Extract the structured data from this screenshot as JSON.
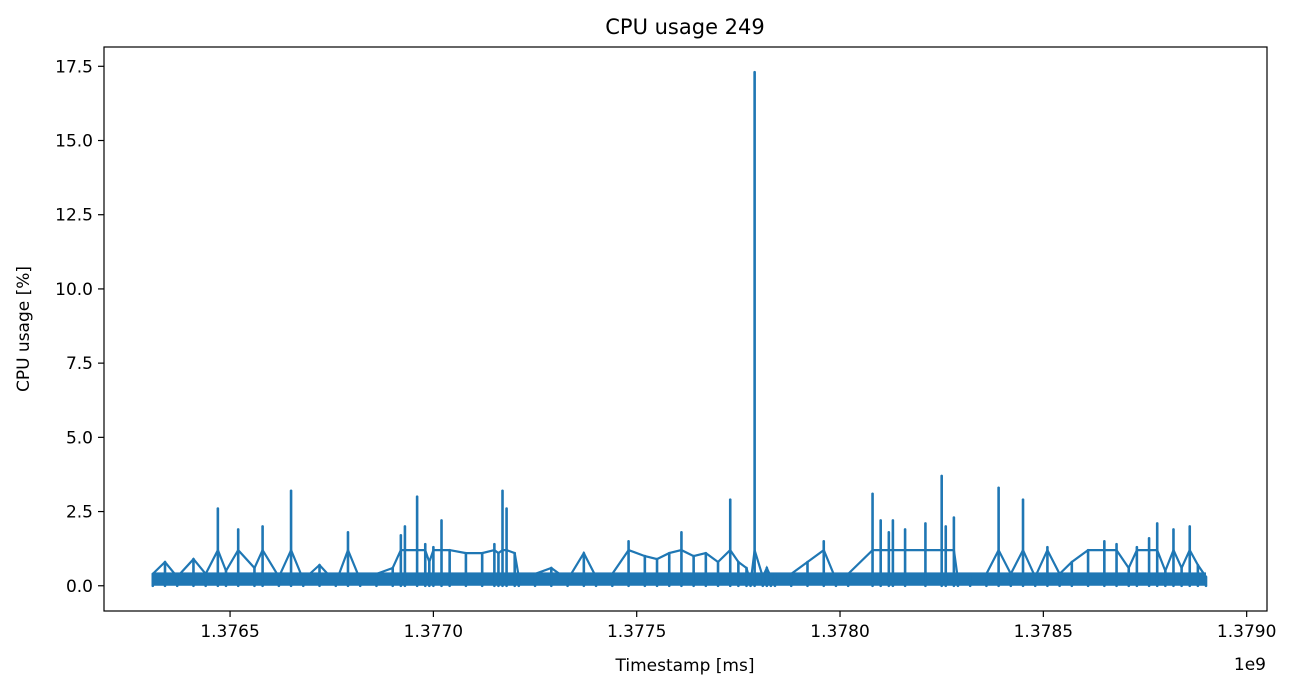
{
  "chart_data": {
    "type": "line",
    "title": "CPU usage 249",
    "xlabel": "Timestamp [ms]",
    "ylabel": "CPU usage [%]",
    "x_offset_label": "1e9",
    "xlim": [
      1.37619,
      1.37905
    ],
    "ylim": [
      -0.85,
      18.15
    ],
    "xticks": [
      1.3765,
      1.377,
      1.3775,
      1.378,
      1.3785,
      1.379
    ],
    "xtick_labels": [
      "1.3765",
      "1.3770",
      "1.3775",
      "1.3780",
      "1.3785",
      "1.3790"
    ],
    "yticks": [
      0.0,
      2.5,
      5.0,
      7.5,
      10.0,
      12.5,
      15.0,
      17.5
    ],
    "ytick_labels": [
      "0.0",
      "2.5",
      "5.0",
      "7.5",
      "10.0",
      "12.5",
      "15.0",
      "17.5"
    ],
    "grid": false,
    "series": [
      {
        "color": "#1f77b4",
        "x": [
          1.37631,
          1.37634,
          1.37637,
          1.37641,
          1.37644,
          1.37647,
          1.37649,
          1.37652,
          1.37656,
          1.37658,
          1.37662,
          1.37665,
          1.37668,
          1.37672,
          1.37676,
          1.37679,
          1.37682,
          1.37686,
          1.3769,
          1.37692,
          1.37693,
          1.37696,
          1.37698,
          1.37699,
          1.377,
          1.37702,
          1.37704,
          1.37708,
          1.37712,
          1.37715,
          1.37716,
          1.37717,
          1.37718,
          1.3772,
          1.37721,
          1.37725,
          1.37729,
          1.37733,
          1.37737,
          1.3774,
          1.37744,
          1.37748,
          1.37752,
          1.37755,
          1.37758,
          1.37761,
          1.37764,
          1.37767,
          1.3777,
          1.37773,
          1.37775,
          1.37777,
          1.37778,
          1.37779,
          1.37781,
          1.37782,
          1.37783,
          1.37784,
          1.37788,
          1.37792,
          1.37796,
          1.37799,
          1.37802,
          1.37808,
          1.3781,
          1.37812,
          1.37813,
          1.37816,
          1.37821,
          1.37825,
          1.37826,
          1.37828,
          1.37829,
          1.37832,
          1.37836,
          1.37839,
          1.37842,
          1.37845,
          1.37848,
          1.37851,
          1.37854,
          1.37857,
          1.37861,
          1.37865,
          1.37868,
          1.37871,
          1.37873,
          1.37876,
          1.37878,
          1.3788,
          1.37882,
          1.37884,
          1.37886,
          1.37888,
          1.3789
        ],
        "y": [
          0.4,
          0.8,
          0.3,
          0.9,
          0.4,
          2.6,
          0.5,
          1.9,
          0.6,
          2.0,
          0.3,
          3.2,
          0.2,
          0.7,
          0.1,
          1.8,
          0.2,
          0.4,
          0.6,
          1.7,
          2.0,
          3.0,
          1.4,
          0.8,
          1.3,
          2.2,
          1.2,
          1.1,
          1.1,
          1.4,
          1.1,
          3.2,
          2.6,
          1.1,
          0.3,
          0.4,
          0.6,
          0.2,
          1.1,
          0.3,
          0.4,
          1.5,
          1.0,
          0.9,
          1.1,
          1.8,
          1.0,
          1.1,
          0.8,
          2.9,
          0.8,
          0.6,
          0.1,
          17.3,
          0.3,
          0.6,
          0.3,
          0.4,
          0.4,
          0.8,
          1.5,
          0.2,
          0.4,
          3.1,
          2.2,
          1.8,
          2.2,
          1.9,
          2.1,
          3.7,
          2.0,
          2.3,
          0.2,
          0.3,
          0.4,
          3.3,
          0.4,
          2.9,
          0.3,
          1.3,
          0.4,
          0.8,
          1.2,
          1.5,
          1.4,
          0.6,
          1.3,
          1.6,
          2.1,
          0.5,
          1.9,
          0.6,
          2.0,
          0.7,
          0.3
        ]
      }
    ]
  }
}
